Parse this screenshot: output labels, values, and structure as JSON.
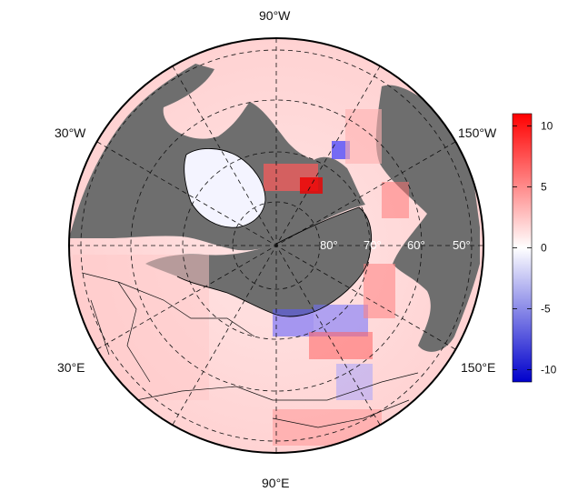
{
  "map": {
    "projection": "north polar stereographic",
    "land_color": "#6e6e6e",
    "longitude_labels": {
      "top": "90°W",
      "left_upper": "30°W",
      "right_upper": "150°W",
      "left_lower": "30°E",
      "right_lower": "150°E",
      "bottom": "90°E"
    },
    "latitude_labels": [
      "80°",
      "70°",
      "60°",
      "50°"
    ]
  },
  "colorbar": {
    "ticks": [
      "10",
      "5",
      "0",
      "-5",
      "-10"
    ],
    "range": [
      -11,
      11
    ],
    "color_high": "#ff0000",
    "color_mid": "#ffffff",
    "color_low": "#0000cc"
  }
}
